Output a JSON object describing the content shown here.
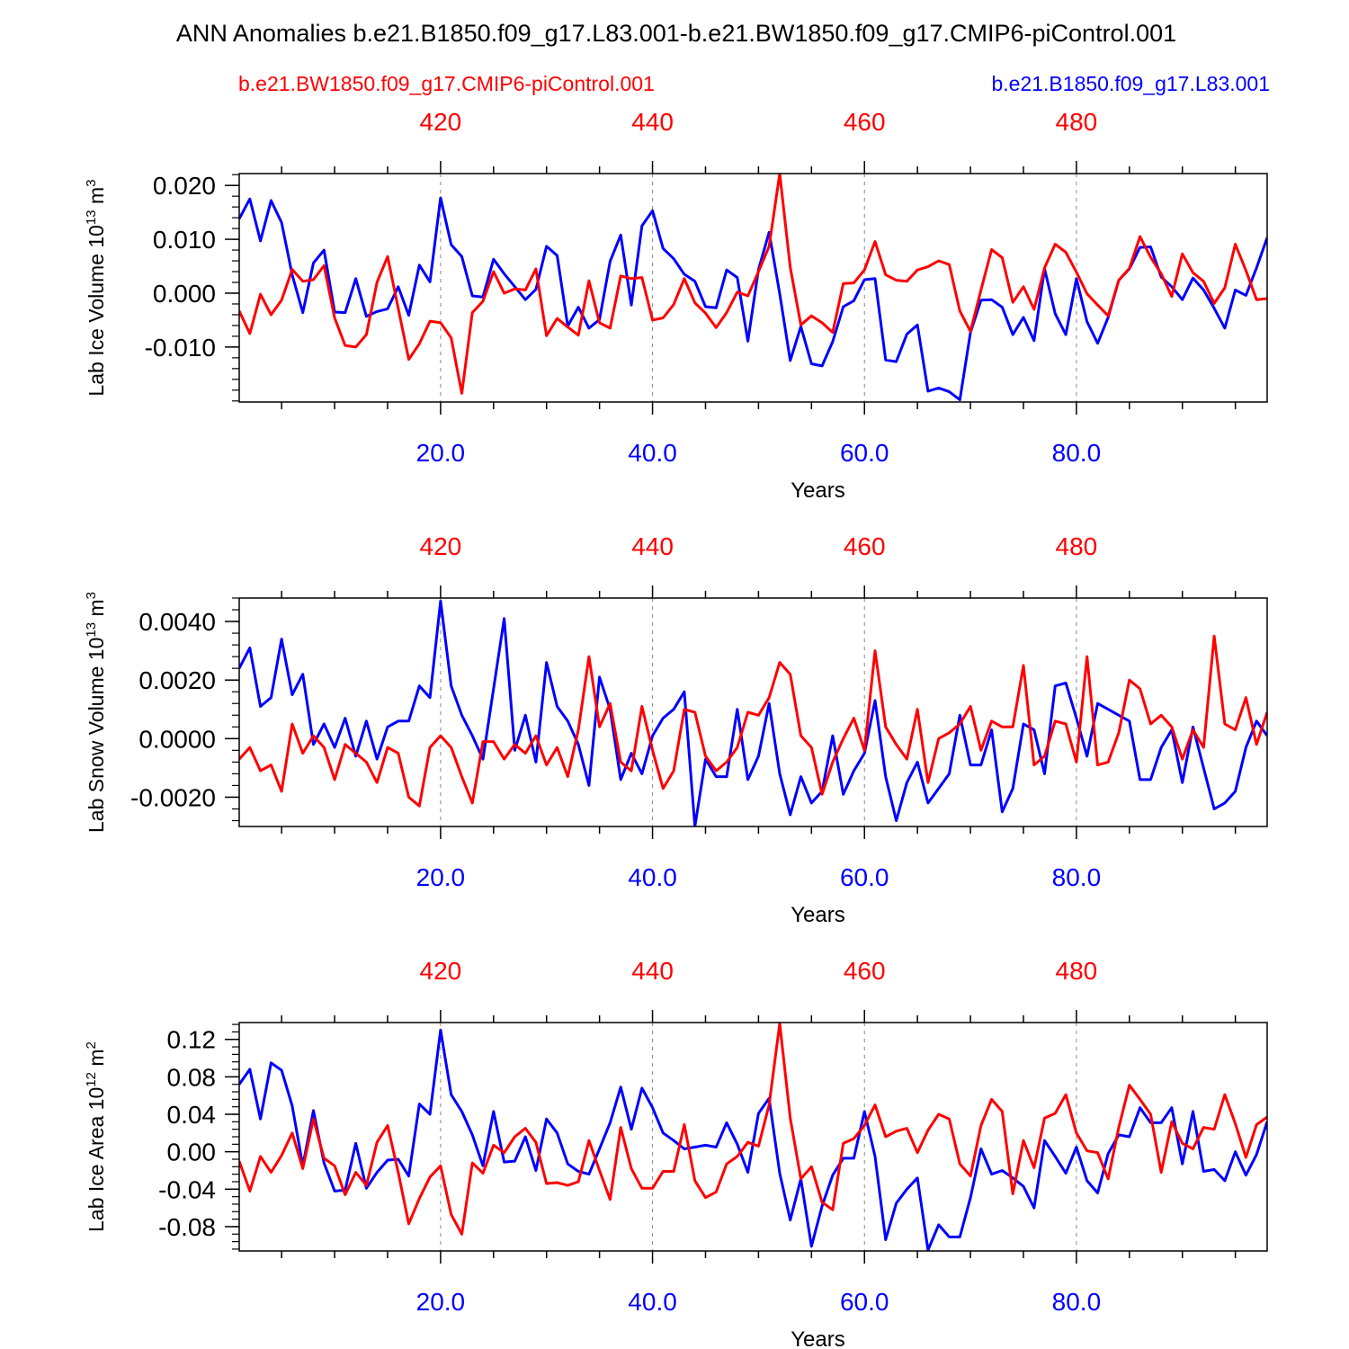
{
  "title": "ANN Anomalies b.e21.B1850.f09_g17.L83.001-b.e21.BW1850.f09_g17.CMIP6-piControl.001",
  "case_labels": {
    "red": "b.e21.BW1850.f09_g17.CMIP6-piControl.001",
    "blue": "b.e21.B1850.f09_g17.L83.001"
  },
  "colors": {
    "red": "#ff0000",
    "blue": "#0000ff",
    "axis": "#000000",
    "grid": "#888888"
  },
  "x_axis": {
    "label": "Years",
    "range": [
      1,
      98
    ],
    "bottom_ticks": [
      20,
      40,
      60,
      80
    ],
    "bottom_tick_labels": [
      "20.0",
      "40.0",
      "60.0",
      "80.0"
    ],
    "top_tick_labels": [
      "420",
      "440",
      "460",
      "480"
    ]
  },
  "chart_data": [
    {
      "type": "line",
      "title": "Lab Ice Volume",
      "ylabel": "Lab Ice Volume 10",
      "ylabel_exp": "13",
      "ylabel_unit": " m",
      "ylabel_unit_exp": "3",
      "xlabel": "Years",
      "ylim": [
        -0.0202,
        0.0222
      ],
      "yticks": [
        0.02,
        0.01,
        0.0,
        -0.01
      ],
      "ytick_labels": [
        "0.020",
        "0.010",
        "0.000",
        "-0.010"
      ],
      "x": [
        1,
        2,
        3,
        4,
        5,
        6,
        7,
        8,
        9,
        10,
        11,
        12,
        13,
        14,
        15,
        16,
        17,
        18,
        19,
        20,
        21,
        22,
        23,
        24,
        25,
        26,
        27,
        28,
        29,
        30,
        31,
        32,
        33,
        34,
        35,
        36,
        37,
        38,
        39,
        40,
        41,
        42,
        43,
        44,
        45,
        46,
        47,
        48,
        49,
        50,
        51,
        52,
        53,
        54,
        55,
        56,
        57,
        58,
        59,
        60,
        61,
        62,
        63,
        64,
        65,
        66,
        67,
        68,
        69,
        70,
        71,
        72,
        73,
        74,
        75,
        76,
        77,
        78,
        79,
        80,
        81,
        82,
        83,
        84,
        85,
        86,
        87,
        88,
        89,
        90,
        91,
        92,
        93,
        94,
        95,
        96,
        97,
        98
      ],
      "series": [
        {
          "name": "b.e21.B1850.f09_g17.L83.001",
          "color": "blue",
          "values": [
            0.0138,
            0.0175,
            0.0097,
            0.0172,
            0.0131,
            0.0034,
            -0.0036,
            0.0056,
            0.008,
            -0.0035,
            -0.0036,
            0.0027,
            -0.0043,
            -0.0034,
            -0.0029,
            0.0012,
            -0.0041,
            0.0052,
            0.0021,
            0.0177,
            0.009,
            0.0068,
            -0.0005,
            -0.0007,
            0.0063,
            0.0036,
            0.0012,
            -0.0012,
            0.0007,
            0.0087,
            0.007,
            -0.0061,
            -0.0026,
            -0.0065,
            -0.0049,
            0.0059,
            0.0108,
            -0.0022,
            0.0125,
            0.0153,
            0.0083,
            0.0064,
            0.0035,
            0.0022,
            -0.0025,
            -0.0027,
            0.0043,
            0.0029,
            -0.0089,
            0.0044,
            0.0113,
            -0.0001,
            -0.0125,
            -0.0062,
            -0.0131,
            -0.0135,
            -0.009,
            -0.0025,
            -0.0014,
            0.0025,
            0.0027,
            -0.0124,
            -0.0127,
            -0.0076,
            -0.0059,
            -0.0182,
            -0.0176,
            -0.0183,
            -0.0198,
            -0.0073,
            -0.0013,
            -0.0012,
            -0.0026,
            -0.0077,
            -0.0045,
            -0.0088,
            0.0045,
            -0.0038,
            -0.0077,
            0.0027,
            -0.0053,
            -0.0093,
            -0.0045,
            0.0024,
            0.0045,
            0.0085,
            0.0086,
            0.003,
            0.0012,
            -0.0012,
            0.0028,
            0.0006,
            -0.0028,
            -0.0065,
            0.0006,
            -0.0004,
            0.0047,
            0.0103
          ]
        },
        {
          "name": "b.e21.BW1850.f09_g17.CMIP6-piControl.001",
          "color": "red",
          "values": [
            -0.0033,
            -0.0075,
            -0.0002,
            -0.004,
            -0.0013,
            0.0044,
            0.0022,
            0.0025,
            0.0051,
            -0.0046,
            -0.0097,
            -0.01,
            -0.0077,
            0.002,
            0.0068,
            -0.0028,
            -0.0123,
            -0.0094,
            -0.0052,
            -0.0055,
            -0.0083,
            -0.0186,
            -0.0036,
            -0.0015,
            0.004,
            0.0,
            0.0008,
            0.0006,
            0.0045,
            -0.0079,
            -0.0047,
            -0.0063,
            -0.0078,
            0.0023,
            -0.0055,
            -0.0065,
            0.0032,
            0.0027,
            0.0029,
            -0.005,
            -0.0046,
            -0.0021,
            0.0027,
            -0.0018,
            -0.0037,
            -0.0064,
            -0.0036,
            0.0002,
            -0.0005,
            0.004,
            0.0087,
            0.0222,
            0.0048,
            -0.0059,
            -0.0042,
            -0.0055,
            -0.0073,
            0.0018,
            0.0019,
            0.0043,
            0.0096,
            0.0034,
            0.0024,
            0.0022,
            0.0043,
            0.0049,
            0.006,
            0.0053,
            -0.0033,
            -0.0071,
            0.0006,
            0.0081,
            0.0066,
            -0.0017,
            0.0012,
            -0.003,
            0.0047,
            0.0091,
            0.0076,
            0.0039,
            -0.0001,
            -0.0022,
            -0.0042,
            0.0024,
            0.0046,
            0.0105,
            0.0067,
            0.0036,
            -0.0006,
            0.0073,
            0.0038,
            0.0022,
            -0.0019,
            0.001,
            0.0091,
            0.0042,
            -0.0012,
            -0.001
          ]
        }
      ]
    },
    {
      "type": "line",
      "title": "Lab Snow Volume",
      "ylabel": "Lab Snow Volume 10",
      "ylabel_exp": "13",
      "ylabel_unit": " m",
      "ylabel_unit_exp": "3",
      "xlabel": "Years",
      "ylim": [
        -0.003,
        0.0048
      ],
      "yticks": [
        0.004,
        0.002,
        0.0,
        -0.002
      ],
      "ytick_labels": [
        "0.0040",
        "0.0020",
        "0.0000",
        "-0.0020"
      ],
      "x": [
        1,
        2,
        3,
        4,
        5,
        6,
        7,
        8,
        9,
        10,
        11,
        12,
        13,
        14,
        15,
        16,
        17,
        18,
        19,
        20,
        21,
        22,
        23,
        24,
        25,
        26,
        27,
        28,
        29,
        30,
        31,
        32,
        33,
        34,
        35,
        36,
        37,
        38,
        39,
        40,
        41,
        42,
        43,
        44,
        45,
        46,
        47,
        48,
        49,
        50,
        51,
        52,
        53,
        54,
        55,
        56,
        57,
        58,
        59,
        60,
        61,
        62,
        63,
        64,
        65,
        66,
        67,
        68,
        69,
        70,
        71,
        72,
        73,
        74,
        75,
        76,
        77,
        78,
        79,
        80,
        81,
        82,
        83,
        84,
        85,
        86,
        87,
        88,
        89,
        90,
        91,
        92,
        93,
        94,
        95,
        96,
        97,
        98
      ],
      "series": [
        {
          "name": "b.e21.B1850.f09_g17.L83.001",
          "color": "blue",
          "values": [
            0.0024,
            0.0031,
            0.0011,
            0.0014,
            0.0034,
            0.0015,
            0.0022,
            -0.0002,
            0.0005,
            -0.0003,
            0.0007,
            -0.0006,
            0.0006,
            -0.0007,
            0.0004,
            0.0006,
            0.0006,
            0.0018,
            0.0014,
            0.0047,
            0.0018,
            0.0008,
            0.0001,
            -0.0007,
            0.0017,
            0.0041,
            -0.0004,
            0.0008,
            -0.0008,
            0.0026,
            0.0011,
            0.0006,
            -0.0002,
            -0.0016,
            0.0021,
            0.001,
            -0.0014,
            -0.0005,
            -0.0012,
            0.0001,
            0.0007,
            0.001,
            0.0016,
            -0.003,
            -0.0007,
            -0.0013,
            -0.0013,
            0.001,
            -0.0014,
            -0.0006,
            0.0012,
            -0.0012,
            -0.0026,
            -0.0013,
            -0.0022,
            -0.0018,
            0.0001,
            -0.0019,
            -0.0011,
            -0.0005,
            0.0013,
            -0.0013,
            -0.0028,
            -0.0015,
            -0.0008,
            -0.0022,
            -0.0017,
            -0.0012,
            0.0008,
            -0.0009,
            -0.0009,
            0.0003,
            -0.0025,
            -0.0017,
            0.0005,
            0.0003,
            -0.0012,
            0.0018,
            0.0019,
            0.0007,
            -0.0006,
            0.0012,
            0.001,
            0.0008,
            0.0006,
            -0.0014,
            -0.0014,
            -0.0003,
            0.0003,
            -0.0015,
            0.0004,
            -0.001,
            -0.0024,
            -0.0022,
            -0.0018,
            -0.0003,
            0.0006,
            0.0001
          ]
        },
        {
          "name": "b.e21.BW1850.f09_g17.CMIP6-piControl.001",
          "color": "red",
          "values": [
            -0.0007,
            -0.0003,
            -0.0011,
            -0.0009,
            -0.0018,
            0.0005,
            -0.0005,
            0.0001,
            -0.0003,
            -0.0014,
            -0.0002,
            -0.0005,
            -0.0008,
            -0.0015,
            -0.0003,
            -0.0005,
            -0.002,
            -0.0023,
            -0.0003,
            0.0001,
            -0.0003,
            -0.0013,
            -0.0022,
            -0.0001,
            -0.0001,
            -0.0007,
            -0.0002,
            -0.0005,
            0.0001,
            -0.0009,
            -0.0003,
            -0.0013,
            0.0003,
            0.0028,
            0.0004,
            0.0012,
            -0.0008,
            -0.0011,
            0.0011,
            -0.0004,
            -0.0017,
            -0.0011,
            0.001,
            0.0009,
            -0.0006,
            -0.0011,
            -0.0008,
            -0.0003,
            0.0009,
            0.0008,
            0.0014,
            0.0026,
            0.0022,
            0.0001,
            -0.0003,
            -0.0019,
            -0.0008,
            0.0,
            0.0007,
            -0.0004,
            0.003,
            0.0004,
            -0.0002,
            -0.0007,
            0.001,
            -0.0015,
            0.0,
            0.0002,
            0.0005,
            0.0011,
            -0.0004,
            0.0006,
            0.0004,
            0.0004,
            0.0025,
            -0.0009,
            -0.0006,
            0.0006,
            0.0005,
            -0.0008,
            0.0028,
            -0.0009,
            -0.0008,
            0.0002,
            0.002,
            0.0017,
            0.0005,
            0.0008,
            0.0004,
            -0.0007,
            0.0003,
            -0.0003,
            0.0035,
            0.0005,
            0.0003,
            0.0014,
            -0.0002,
            0.0009
          ]
        }
      ]
    },
    {
      "type": "line",
      "title": "Lab Ice Area",
      "ylabel": "Lab Ice Area 10",
      "ylabel_exp": "12",
      "ylabel_unit": " m",
      "ylabel_unit_exp": "2",
      "xlabel": "Years",
      "ylim": [
        -0.106,
        0.138
      ],
      "yticks": [
        0.12,
        0.08,
        0.04,
        0.0,
        -0.04,
        -0.08
      ],
      "ytick_labels": [
        "0.12",
        "0.08",
        "0.04",
        "0.00",
        "-0.04",
        "-0.08"
      ],
      "x": [
        1,
        2,
        3,
        4,
        5,
        6,
        7,
        8,
        9,
        10,
        11,
        12,
        13,
        14,
        15,
        16,
        17,
        18,
        19,
        20,
        21,
        22,
        23,
        24,
        25,
        26,
        27,
        28,
        29,
        30,
        31,
        32,
        33,
        34,
        35,
        36,
        37,
        38,
        39,
        40,
        41,
        42,
        43,
        44,
        45,
        46,
        47,
        48,
        49,
        50,
        51,
        52,
        53,
        54,
        55,
        56,
        57,
        58,
        59,
        60,
        61,
        62,
        63,
        64,
        65,
        66,
        67,
        68,
        69,
        70,
        71,
        72,
        73,
        74,
        75,
        76,
        77,
        78,
        79,
        80,
        81,
        82,
        83,
        84,
        85,
        86,
        87,
        88,
        89,
        90,
        91,
        92,
        93,
        94,
        95,
        96,
        97,
        98
      ],
      "series": [
        {
          "name": "b.e21.B1850.f09_g17.L83.001",
          "color": "blue",
          "values": [
            0.072,
            0.088,
            0.035,
            0.095,
            0.087,
            0.049,
            -0.015,
            0.044,
            -0.012,
            -0.042,
            -0.041,
            0.009,
            -0.039,
            -0.022,
            -0.009,
            -0.008,
            -0.026,
            0.051,
            0.04,
            0.13,
            0.061,
            0.043,
            0.018,
            -0.015,
            0.043,
            -0.011,
            -0.01,
            0.016,
            -0.02,
            0.035,
            0.02,
            -0.013,
            -0.021,
            -0.024,
            0.003,
            0.031,
            0.069,
            0.024,
            0.068,
            0.047,
            0.02,
            0.012,
            0.003,
            0.005,
            0.007,
            0.005,
            0.031,
            0.008,
            -0.022,
            0.041,
            0.057,
            -0.023,
            -0.073,
            -0.029,
            -0.101,
            -0.058,
            -0.025,
            -0.007,
            -0.007,
            0.043,
            -0.005,
            -0.094,
            -0.055,
            -0.04,
            -0.028,
            -0.105,
            -0.078,
            -0.091,
            -0.091,
            -0.049,
            0.003,
            -0.024,
            -0.02,
            -0.028,
            -0.037,
            -0.06,
            0.012,
            -0.005,
            -0.023,
            0.005,
            -0.031,
            -0.044,
            -0.002,
            0.018,
            0.016,
            0.047,
            0.031,
            0.031,
            0.047,
            -0.013,
            0.043,
            -0.021,
            -0.019,
            -0.031,
            0.0,
            -0.025,
            -0.003,
            0.032
          ]
        },
        {
          "name": "b.e21.BW1850.f09_g17.CMIP6-piControl.001",
          "color": "red",
          "values": [
            -0.01,
            -0.042,
            -0.005,
            -0.022,
            -0.004,
            0.02,
            -0.018,
            0.035,
            -0.007,
            -0.015,
            -0.046,
            -0.022,
            -0.036,
            0.01,
            0.028,
            -0.022,
            -0.077,
            -0.05,
            -0.027,
            -0.015,
            -0.067,
            -0.088,
            -0.012,
            -0.023,
            0.007,
            -0.001,
            0.016,
            0.025,
            0.01,
            -0.034,
            -0.033,
            -0.036,
            -0.032,
            0.012,
            -0.02,
            -0.051,
            0.026,
            -0.018,
            -0.039,
            -0.039,
            -0.021,
            -0.021,
            0.029,
            -0.031,
            -0.049,
            -0.043,
            -0.013,
            -0.005,
            0.01,
            0.006,
            0.05,
            0.137,
            0.036,
            -0.029,
            -0.016,
            -0.054,
            -0.062,
            0.009,
            0.014,
            0.028,
            0.05,
            0.016,
            0.022,
            0.025,
            -0.001,
            0.023,
            0.04,
            0.035,
            -0.013,
            -0.026,
            0.028,
            0.056,
            0.043,
            -0.045,
            0.012,
            -0.017,
            0.036,
            0.041,
            0.061,
            0.02,
            0.001,
            -0.001,
            -0.029,
            0.026,
            0.071,
            0.056,
            0.04,
            -0.022,
            0.032,
            0.009,
            0.003,
            0.026,
            0.024,
            0.061,
            0.03,
            -0.006,
            0.029,
            0.037
          ]
        }
      ]
    }
  ]
}
